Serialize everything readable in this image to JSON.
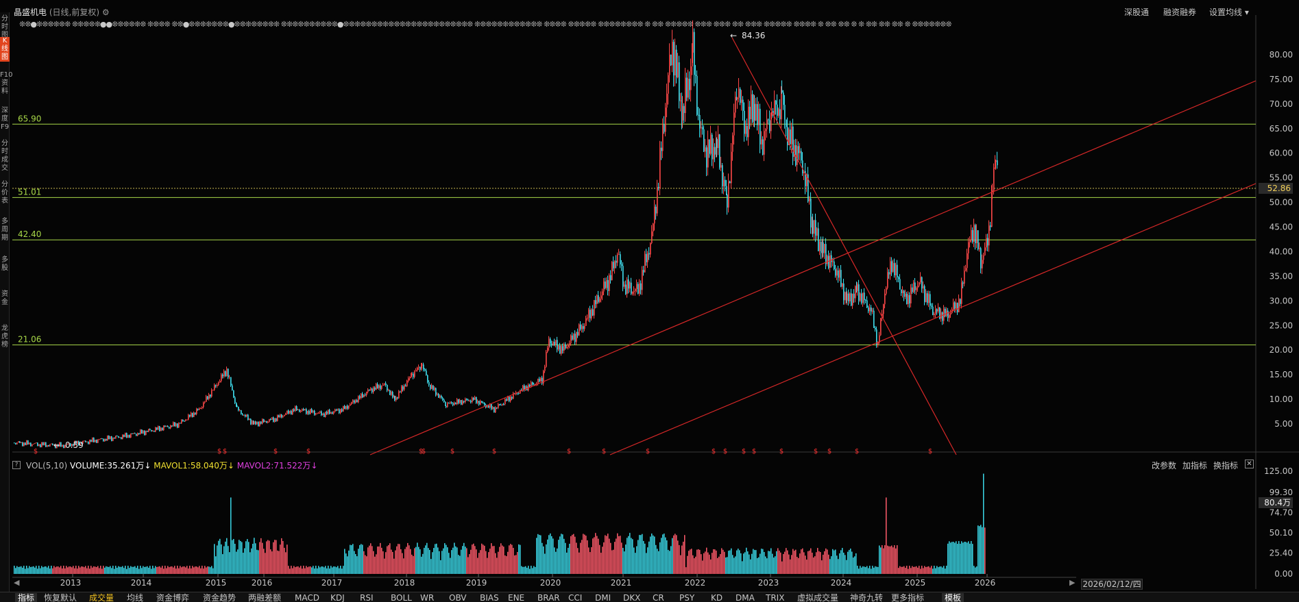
{
  "header": {
    "stock_name": "晶盛机电",
    "mode": "(日线,前复权)",
    "gear_icon": "gear-icon",
    "right_buttons": [
      "深股通",
      "融资融券",
      "设置均线"
    ]
  },
  "left_tabs": [
    "分\n时\n图",
    "K\n线\n图",
    "F10\n资\n料",
    "深\n度\nF9",
    "分\n时\n成\n交",
    "分\n价\n表",
    "多\n周\n期",
    "多\n股",
    "资\n金",
    "龙\n虎\n榜"
  ],
  "price_axis": {
    "min": 0,
    "max": 85,
    "ticks": [
      "5.00",
      "10.00",
      "15.00",
      "20.00",
      "25.00",
      "30.00",
      "35.00",
      "40.00",
      "45.00",
      "50.00",
      "55.00",
      "60.00",
      "65.00",
      "70.00",
      "75.00",
      "80.00"
    ],
    "current": "52.86"
  },
  "levels": [
    {
      "label": "65.90",
      "value": 65.9
    },
    {
      "label": "51.01",
      "value": 51.01
    },
    {
      "label": "42.40",
      "value": 42.4
    },
    {
      "label": "21.06",
      "value": 21.06
    }
  ],
  "annotations": {
    "high": "84.36",
    "low": "0.59"
  },
  "years": [
    "2013",
    "2014",
    "2015",
    "2016",
    "2017",
    "2018",
    "2019",
    "2020",
    "2021",
    "2022",
    "2023",
    "2024",
    "2025",
    "2026"
  ],
  "volume": {
    "help_icon": "question-icon",
    "name": "VOL(5,10)",
    "volume": "VOLUME:35.261万",
    "mavol1": "MAVOL1:58.040万",
    "mavol2": "MAVOL2:71.522万",
    "axis": [
      "0.00",
      "25.40",
      "50.10",
      "74.70",
      "99.30",
      "125.00"
    ],
    "current": "80.4万",
    "max": 125,
    "right_buttons": [
      "改参数",
      "加指标",
      "换指标"
    ]
  },
  "date": "2026/02/12/四",
  "bottom_tabs": [
    "指标",
    "恢复默认",
    "成交量",
    "均线",
    "资金博弈",
    "资金趋势",
    "两融差额",
    "MACD",
    "KDJ",
    "RSI",
    "BOLL",
    "WR",
    "OBV",
    "BIAS",
    "ENE",
    "BRAR",
    "CCI",
    "DMI",
    "DKX",
    "CR",
    "PSY",
    "KD",
    "DMA",
    "TRIX",
    "虚拟成交量",
    "神奇九转",
    "更多指标",
    "模板"
  ],
  "signal_symbol": "$",
  "marks_text": "❊❊●❊❊❊❊❊❊ ❊❊❊❊❊●●❊❊❊❊❊❊ ❊❊❊❊ ❊❊●❊❊❊❊❊❊❊●❊❊❊❊❊❊❊❊ ❊❊❊❊❊❊❊❊❊❊●❊❊❊❊❊❊❊❊❊❊❊❊❊❊❊❊❊❊❊❊❊❊❊ ❊❊❊❊❊❊❊❊❊❊❊❊ ❊❊❊❊ ❊❊❊❊❊ ❊❊❊❊❊❊❊❊ ❊ ❊❊ ❊❊❊❊❊ ❊❊❊ ❊❊❊ ❊❊ ❊❊❊ ❊❊❊❊❊ ❊❊❊❊ ❊ ❊❊ ❊❊ ❊ ❊ ❊❊ ❊❊ ❊❊ ❊ ❊❊❊❊❊❊❊",
  "colors": {
    "up": "#ff4848",
    "down": "#40e0f0",
    "level": "#a8d848",
    "trend": "#d82828",
    "volume_up": "#ff5a6a",
    "volume_down": "#3ad8e8",
    "mavol1": "#f0e030",
    "mavol2": "#e040e0"
  }
}
